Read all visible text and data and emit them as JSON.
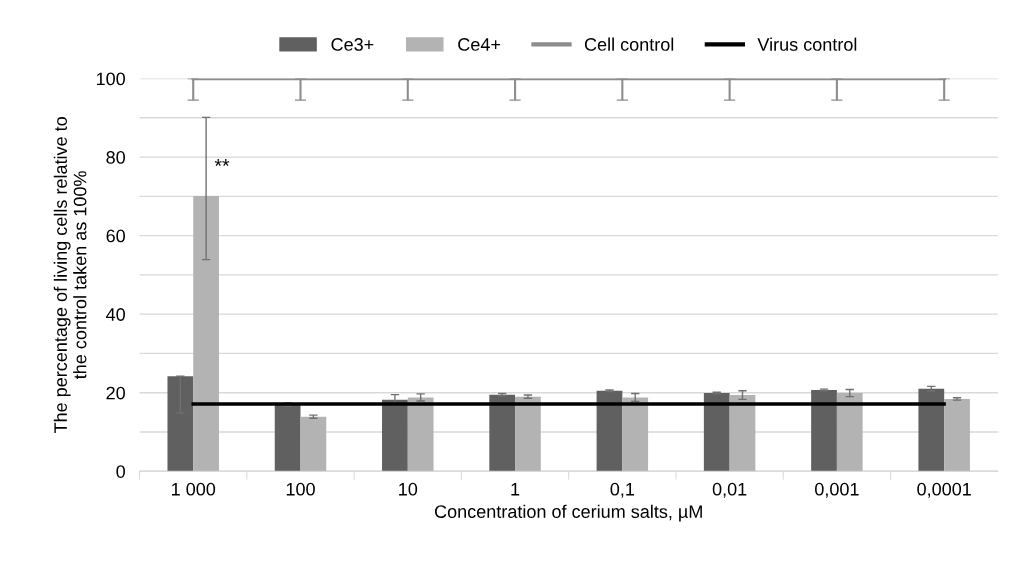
{
  "chart_data": {
    "type": "bar",
    "categories": [
      "1 000",
      "100",
      "10",
      "1",
      "0,1",
      "0,01",
      "0,001",
      "0,0001"
    ],
    "series": [
      {
        "name": "Ce3+",
        "color": "#606060",
        "values": [
          24.2,
          17.0,
          18.2,
          19.5,
          20.5,
          19.9,
          20.7,
          21.0
        ],
        "errors": [
          [
            14.8,
            24.2
          ],
          0.4,
          1.3,
          0.3,
          0.2,
          0.2,
          0.2,
          0.6
        ]
      },
      {
        "name": "Ce4+",
        "color": "#b3b3b3",
        "values": [
          70.1,
          13.9,
          18.8,
          19.0,
          18.8,
          19.4,
          19.9,
          18.4
        ],
        "errors": [
          [
            53.9,
            90.1
          ],
          0.4,
          0.9,
          0.4,
          1.0,
          1.1,
          0.9,
          0.3
        ]
      },
      {
        "name": "Cell control",
        "type": "line",
        "color": "#8c8c8c",
        "values": [
          100,
          100,
          100,
          100,
          100,
          100,
          100,
          100
        ],
        "errors": [
          [
            94.5,
            100
          ],
          [
            94.5,
            100
          ],
          [
            94.5,
            100
          ],
          [
            94.5,
            100
          ],
          [
            94.5,
            100
          ],
          [
            94.5,
            100
          ],
          [
            94.5,
            100
          ],
          [
            94.5,
            100
          ]
        ]
      },
      {
        "name": "Virus control",
        "type": "line",
        "color": "#000000",
        "values": [
          17.1,
          17.1,
          17.1,
          17.1,
          17.1,
          17.1,
          17.1,
          17.1
        ]
      }
    ],
    "xlabel": "Concentration of cerium salts, µM",
    "ylabel": "The percentage of living cells relative to\nthe control taken as 100%",
    "ylim": [
      0,
      100
    ],
    "yticks": [
      0,
      {
        "value": 10,
        "label": null
      },
      20,
      {
        "value": 30,
        "label": null
      },
      40,
      {
        "value": 50,
        "label": null
      },
      60,
      {
        "value": 70,
        "label": null
      },
      80,
      {
        "value": 90,
        "label": null
      },
      100
    ],
    "grid": "y",
    "legend": "top",
    "annotations": [
      "**"
    ]
  }
}
